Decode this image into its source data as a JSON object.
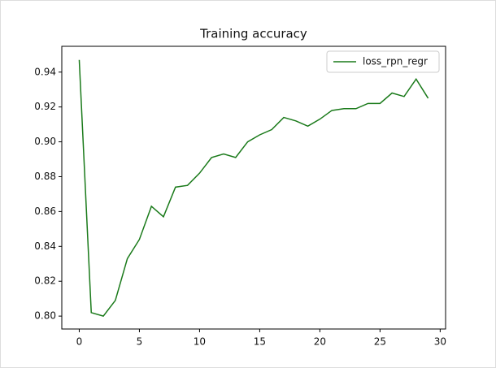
{
  "chart_data": {
    "type": "line",
    "title": "Training accuracy",
    "x": [
      0,
      1,
      2,
      3,
      4,
      5,
      6,
      7,
      8,
      9,
      10,
      11,
      12,
      13,
      14,
      15,
      16,
      17,
      18,
      19,
      20,
      21,
      22,
      23,
      24,
      25,
      26,
      27,
      28,
      29
    ],
    "series": [
      {
        "name": "loss_rpn_regr",
        "color": "#1a7a1a",
        "values": [
          0.947,
          0.802,
          0.8,
          0.809,
          0.833,
          0.844,
          0.863,
          0.857,
          0.874,
          0.875,
          0.882,
          0.891,
          0.893,
          0.891,
          0.9,
          0.904,
          0.907,
          0.914,
          0.912,
          0.909,
          0.913,
          0.918,
          0.919,
          0.919,
          0.922,
          0.922,
          0.928,
          0.926,
          0.936,
          0.925
        ]
      }
    ],
    "xlim": [
      -1.45,
      30.45
    ],
    "xticks": [
      0,
      5,
      10,
      15,
      20,
      25,
      30
    ],
    "ylim": [
      0.7926,
      0.9548
    ],
    "yticks": [
      {
        "value": 0.8,
        "label": "0.80"
      },
      {
        "value": 0.82,
        "label": "0.82"
      },
      {
        "value": 0.84,
        "label": "0.84"
      },
      {
        "value": 0.86,
        "label": "0.86"
      },
      {
        "value": 0.88,
        "label": "0.88"
      },
      {
        "value": 0.9,
        "label": "0.90"
      },
      {
        "value": 0.92,
        "label": "0.92"
      },
      {
        "value": 0.94,
        "label": "0.94"
      }
    ],
    "legend": "upper right"
  }
}
